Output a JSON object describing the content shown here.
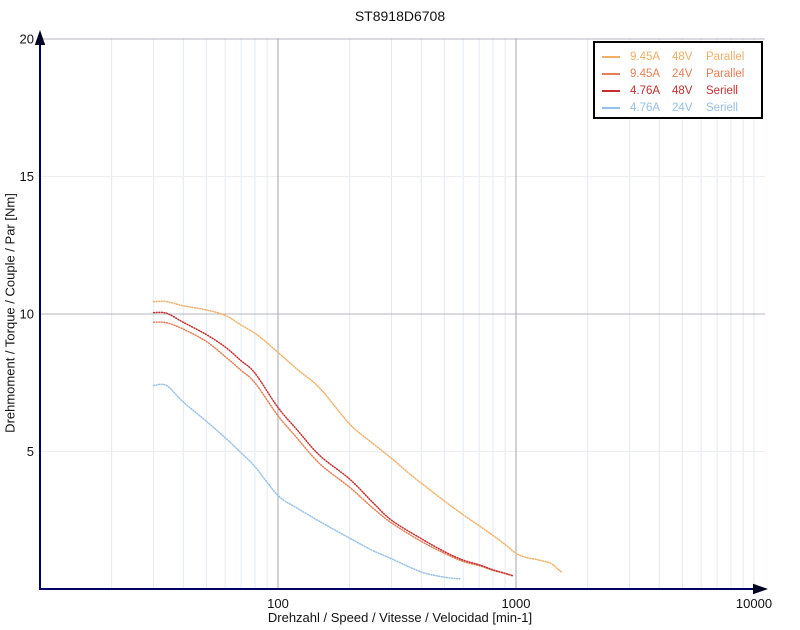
{
  "chart_data": {
    "type": "line",
    "title": "ST8918D6708",
    "xlabel": "Drehzahl / Speed / Vitesse / Velocidad [min-1]",
    "ylabel": "Drehmoment / Torque / Couple / Par [Nm]",
    "x_scale": "log",
    "xlim": [
      10,
      10000
    ],
    "ylim": [
      0,
      20
    ],
    "grid": true,
    "legend_position": "top-right",
    "x_ticks": [
      {
        "value": 100,
        "label": "100"
      },
      {
        "value": 1000,
        "label": "1000"
      },
      {
        "value": 10000,
        "label": "10000"
      }
    ],
    "y_ticks": [
      {
        "value": 5,
        "label": "5"
      },
      {
        "value": 10,
        "label": "10"
      },
      {
        "value": 15,
        "label": "15"
      },
      {
        "value": 20,
        "label": "20"
      }
    ],
    "x_gridlines_major": [
      100,
      1000
    ],
    "y_gridlines_major": [
      10,
      20
    ],
    "y_gridlines_minor": [
      5,
      15
    ],
    "series": [
      {
        "id": "945a-48v-parallel",
        "name": "9.45A 48V Parallel",
        "color": "#f3af65",
        "points": [
          [
            30,
            10.45
          ],
          [
            34,
            10.45
          ],
          [
            40,
            10.3
          ],
          [
            50,
            10.15
          ],
          [
            60,
            9.95
          ],
          [
            70,
            9.6
          ],
          [
            80,
            9.3
          ],
          [
            90,
            8.95
          ],
          [
            100,
            8.6
          ],
          [
            120,
            8.0
          ],
          [
            150,
            7.3
          ],
          [
            200,
            6.0
          ],
          [
            250,
            5.3
          ],
          [
            300,
            4.75
          ],
          [
            350,
            4.25
          ],
          [
            400,
            3.85
          ],
          [
            500,
            3.2
          ],
          [
            600,
            2.7
          ],
          [
            700,
            2.3
          ],
          [
            800,
            1.95
          ],
          [
            900,
            1.62
          ],
          [
            1000,
            1.3
          ],
          [
            1100,
            1.15
          ],
          [
            1250,
            1.05
          ],
          [
            1400,
            0.93
          ],
          [
            1500,
            0.72
          ],
          [
            1560,
            0.6
          ]
        ]
      },
      {
        "id": "945a-24v-parallel",
        "name": "9.45A 24V Parallel",
        "color": "#e87e55",
        "points": [
          [
            30,
            9.7
          ],
          [
            34,
            9.68
          ],
          [
            40,
            9.45
          ],
          [
            50,
            9.0
          ],
          [
            60,
            8.45
          ],
          [
            70,
            7.95
          ],
          [
            80,
            7.5
          ],
          [
            100,
            6.3
          ],
          [
            120,
            5.5
          ],
          [
            150,
            4.55
          ],
          [
            200,
            3.7
          ],
          [
            250,
            2.95
          ],
          [
            300,
            2.4
          ],
          [
            400,
            1.73
          ],
          [
            500,
            1.3
          ],
          [
            600,
            1.0
          ],
          [
            700,
            0.85
          ],
          [
            800,
            0.68
          ],
          [
            900,
            0.56
          ],
          [
            970,
            0.48
          ]
        ]
      },
      {
        "id": "476a-48v-seriell",
        "name": "4.76A 48V Seriell",
        "color": "#c52f2f",
        "points": [
          [
            30,
            10.05
          ],
          [
            34,
            10.03
          ],
          [
            40,
            9.7
          ],
          [
            50,
            9.25
          ],
          [
            60,
            8.8
          ],
          [
            70,
            8.3
          ],
          [
            80,
            7.85
          ],
          [
            100,
            6.6
          ],
          [
            120,
            5.8
          ],
          [
            150,
            4.85
          ],
          [
            200,
            4.0
          ],
          [
            250,
            3.15
          ],
          [
            300,
            2.5
          ],
          [
            400,
            1.83
          ],
          [
            500,
            1.36
          ],
          [
            600,
            1.05
          ],
          [
            700,
            0.88
          ],
          [
            800,
            0.7
          ],
          [
            900,
            0.57
          ],
          [
            970,
            0.48
          ]
        ]
      },
      {
        "id": "476a-24v-seriell",
        "name": "4.76A 24V Seriell",
        "color": "#96c0e7",
        "points": [
          [
            30,
            7.4
          ],
          [
            34,
            7.4
          ],
          [
            40,
            6.8
          ],
          [
            50,
            6.1
          ],
          [
            60,
            5.5
          ],
          [
            70,
            4.95
          ],
          [
            80,
            4.45
          ],
          [
            100,
            3.4
          ],
          [
            120,
            2.95
          ],
          [
            150,
            2.45
          ],
          [
            200,
            1.85
          ],
          [
            250,
            1.4
          ],
          [
            300,
            1.1
          ],
          [
            400,
            0.62
          ],
          [
            500,
            0.43
          ],
          [
            580,
            0.37
          ]
        ]
      }
    ]
  },
  "legend": {
    "items": [
      {
        "amps": "9.45A",
        "volts": "48V",
        "mode": "Parallel",
        "color": "#f3af65"
      },
      {
        "amps": "9.45A",
        "volts": "24V",
        "mode": "Parallel",
        "color": "#e87e55"
      },
      {
        "amps": "4.76A",
        "volts": "48V",
        "mode": "Seriell",
        "color": "#c52f2f"
      },
      {
        "amps": "4.76A",
        "volts": "24V",
        "mode": "Seriell",
        "color": "#96c0e7"
      }
    ]
  },
  "colors": {
    "axis": "#000066",
    "arrow": "#000022",
    "grid_minor_v": "#e3eaf4",
    "grid_major_v": "#a3a3ad",
    "grid_minor_h": "#ededf2",
    "grid_major_h": "#b4b4bf",
    "text": "#111111",
    "background": "#ffffff"
  }
}
